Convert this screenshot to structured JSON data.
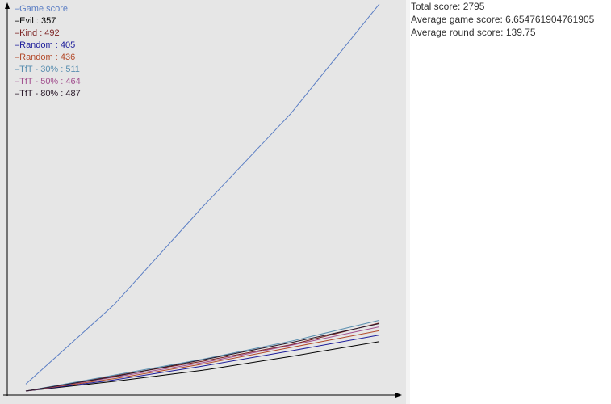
{
  "stats": {
    "total_score": "Total score: 2795",
    "average_game_score": "Average game score: 6.654761904761905",
    "average_round_score": "Average round score: 139.75"
  },
  "chart_data": {
    "type": "line",
    "x": [
      0,
      5,
      10,
      15,
      20
    ],
    "grid": false,
    "legend_position": "top-left",
    "series": [
      {
        "name": "Game score",
        "label": "Game score",
        "color": "#5b7ec4",
        "values": [
          50,
          625,
          1330,
          2005,
          2795
        ]
      },
      {
        "name": "Evil",
        "label": "Evil : 357",
        "color": "#000000",
        "values": [
          0,
          70,
          150,
          250,
          357
        ]
      },
      {
        "name": "Kind",
        "label": "Kind : 492",
        "color": "#7a1f1f",
        "values": [
          0,
          110,
          215,
          335,
          492
        ]
      },
      {
        "name": "Random",
        "label": "Random : 405",
        "color": "#1c1c9a",
        "values": [
          0,
          80,
          180,
          290,
          405
        ]
      },
      {
        "name": "Random",
        "label": "Random : 436",
        "color": "#b34a2a",
        "values": [
          0,
          90,
          195,
          315,
          436
        ]
      },
      {
        "name": "TfT - 30%",
        "label": "TfT - 30% : 511",
        "color": "#5a8fb0",
        "values": [
          0,
          115,
          230,
          360,
          511
        ]
      },
      {
        "name": "TfT - 50%",
        "label": "TfT - 50% : 464",
        "color": "#a2508f",
        "values": [
          0,
          100,
          205,
          330,
          464
        ]
      },
      {
        "name": "TfT - 80%",
        "label": "TfT - 80% : 487",
        "color": "#2a1a2a",
        "values": [
          0,
          105,
          225,
          350,
          487
        ]
      }
    ]
  }
}
